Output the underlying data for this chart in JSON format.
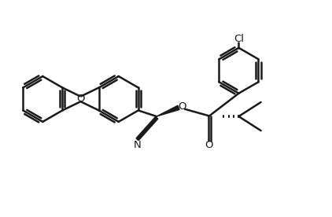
{
  "bg_color": "#ffffff",
  "line_color": "#1a1a1a",
  "line_width": 1.8,
  "dbo": 0.055,
  "ring_r": 0.72,
  "figsize": [
    4.22,
    2.76
  ],
  "dpi": 100,
  "xlim": [
    0,
    10.5
  ],
  "ylim": [
    0,
    6.5
  ]
}
